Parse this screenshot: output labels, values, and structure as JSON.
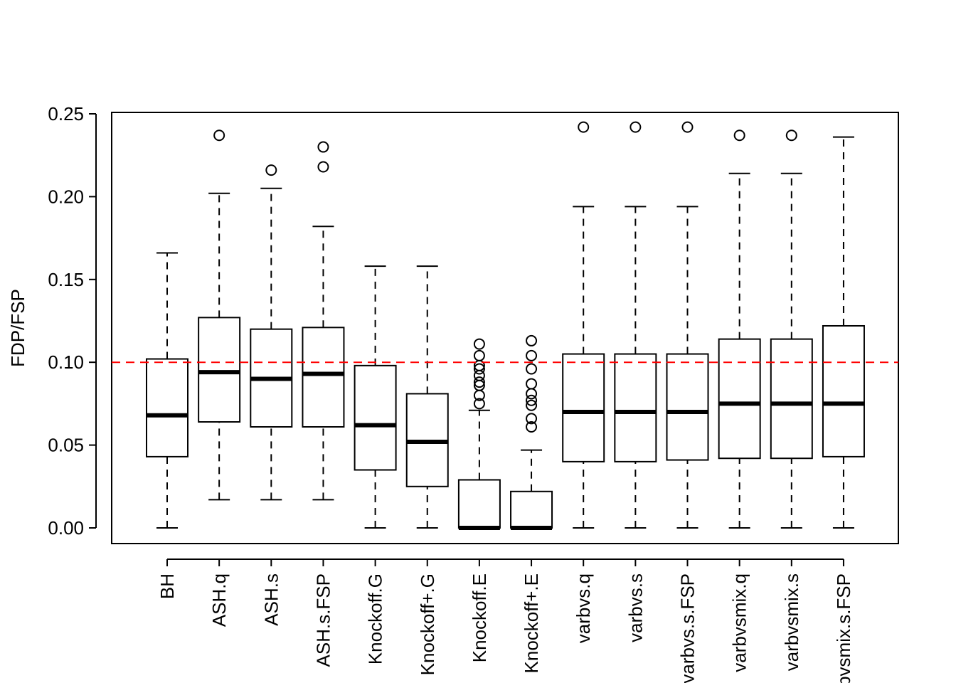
{
  "chart_data": {
    "type": "boxplot",
    "title": "",
    "xlabel": "",
    "ylabel": "FDP/FSP",
    "ylim": [
      -0.01,
      0.25
    ],
    "yticks": [
      "0.00",
      "0.05",
      "0.10",
      "0.15",
      "0.20",
      "0.25"
    ],
    "reference_line": {
      "y": 0.1,
      "color": "#ff0000",
      "style": "dashed"
    },
    "categories": [
      "BH",
      "ASH.q",
      "ASH.s",
      "ASH.s.FSP",
      "Knockoff.G",
      "Knockoff+.G",
      "Knockoff.E",
      "Knockoff+.E",
      "varbvs.q",
      "varbvs.s",
      "varbvs.s.FSP",
      "varbvsmix.q",
      "varbvsmix.s",
      "varbvsmix.s.FSP"
    ],
    "boxes": [
      {
        "whisker_low": 0.0,
        "q1": 0.043,
        "median": 0.068,
        "q3": 0.102,
        "whisker_high": 0.166,
        "outliers": []
      },
      {
        "whisker_low": 0.017,
        "q1": 0.064,
        "median": 0.094,
        "q3": 0.127,
        "whisker_high": 0.202,
        "outliers": [
          0.237
        ]
      },
      {
        "whisker_low": 0.017,
        "q1": 0.061,
        "median": 0.09,
        "q3": 0.12,
        "whisker_high": 0.205,
        "outliers": [
          0.216
        ]
      },
      {
        "whisker_low": 0.017,
        "q1": 0.061,
        "median": 0.093,
        "q3": 0.121,
        "whisker_high": 0.182,
        "outliers": [
          0.218,
          0.23
        ]
      },
      {
        "whisker_low": 0.0,
        "q1": 0.035,
        "median": 0.062,
        "q3": 0.098,
        "whisker_high": 0.158,
        "outliers": []
      },
      {
        "whisker_low": 0.0,
        "q1": 0.025,
        "median": 0.052,
        "q3": 0.081,
        "whisker_high": 0.158,
        "outliers": []
      },
      {
        "whisker_low": 0.0,
        "q1": 0.0,
        "median": 0.0,
        "q3": 0.029,
        "whisker_high": 0.071,
        "outliers": [
          0.075,
          0.08,
          0.086,
          0.088,
          0.092,
          0.096,
          0.098,
          0.104,
          0.111
        ]
      },
      {
        "whisker_low": 0.0,
        "q1": 0.0,
        "median": 0.0,
        "q3": 0.022,
        "whisker_high": 0.047,
        "outliers": [
          0.061,
          0.066,
          0.074,
          0.077,
          0.081,
          0.087,
          0.096,
          0.104,
          0.113
        ]
      },
      {
        "whisker_low": 0.0,
        "q1": 0.04,
        "median": 0.07,
        "q3": 0.105,
        "whisker_high": 0.194,
        "outliers": [
          0.242
        ]
      },
      {
        "whisker_low": 0.0,
        "q1": 0.04,
        "median": 0.07,
        "q3": 0.105,
        "whisker_high": 0.194,
        "outliers": [
          0.242
        ]
      },
      {
        "whisker_low": 0.0,
        "q1": 0.041,
        "median": 0.07,
        "q3": 0.105,
        "whisker_high": 0.194,
        "outliers": [
          0.242
        ]
      },
      {
        "whisker_low": 0.0,
        "q1": 0.042,
        "median": 0.075,
        "q3": 0.114,
        "whisker_high": 0.214,
        "outliers": [
          0.237
        ]
      },
      {
        "whisker_low": 0.0,
        "q1": 0.042,
        "median": 0.075,
        "q3": 0.114,
        "whisker_high": 0.214,
        "outliers": [
          0.237
        ]
      },
      {
        "whisker_low": 0.0,
        "q1": 0.043,
        "median": 0.075,
        "q3": 0.122,
        "whisker_high": 0.236,
        "outliers": []
      }
    ],
    "grid": false,
    "legend": "none"
  }
}
